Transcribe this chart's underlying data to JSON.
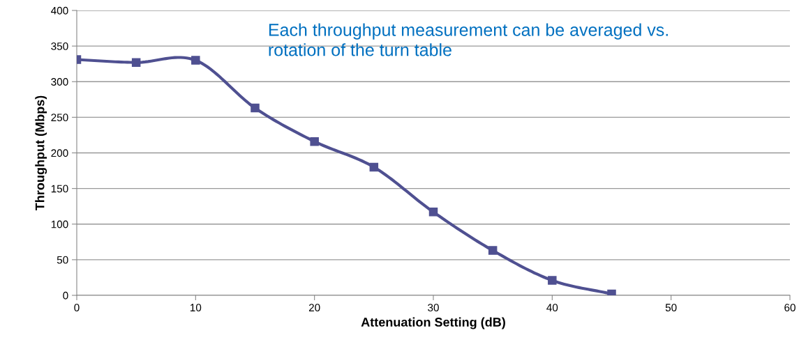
{
  "chart_data": {
    "type": "line",
    "xlabel": "Attenuation Setting (dB)",
    "ylabel": "Throughput (Mbps)",
    "annotations": [
      "Each throughput measurement can be averaged vs.\nrotation of the turn table"
    ],
    "x": [
      0,
      5,
      10,
      15,
      20,
      25,
      30,
      35,
      40,
      45
    ],
    "series": [
      {
        "color": "#4f5091",
        "values": [
          331,
          327,
          330,
          263,
          216,
          180,
          117,
          63,
          21,
          2
        ]
      }
    ],
    "xlim": [
      0,
      60
    ],
    "xticks": [
      0,
      10,
      20,
      30,
      40,
      50,
      60
    ],
    "ylim": [
      0,
      400
    ],
    "yticks": [
      0,
      50,
      100,
      150,
      200,
      250,
      300,
      350,
      400
    ],
    "grid": "y",
    "marker": "square",
    "line_style": "solid",
    "legend": false
  }
}
